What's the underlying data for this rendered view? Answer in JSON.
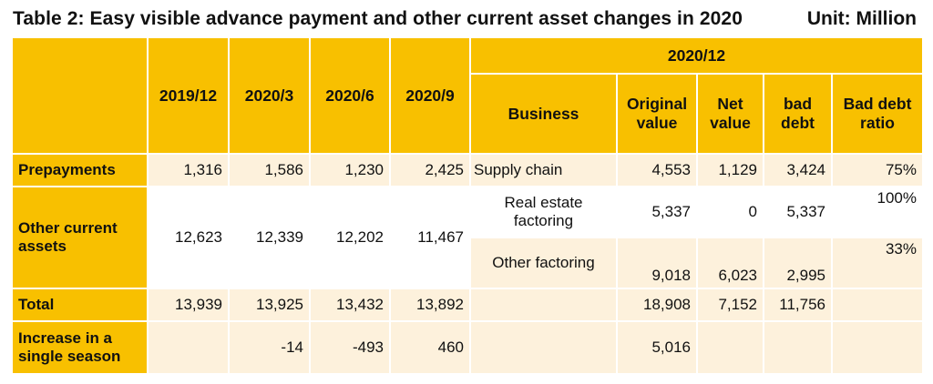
{
  "title": "Table 2: Easy visible advance payment and other current asset changes in 2020",
  "unit": "Unit: Million",
  "headers": {
    "p1": "2019/12",
    "p2": "2020/3",
    "p3": "2020/6",
    "p4": "2020/9",
    "group": "2020/12",
    "business": "Business",
    "original_value": "Original value",
    "net_value": "Net value",
    "bad_debt": "bad debt",
    "bad_debt_ratio": "Bad debt ratio"
  },
  "rows": {
    "prepayments": {
      "label": "Prepayments",
      "p1": "1,316",
      "p2": "1,586",
      "p3": "1,230",
      "p4": "2,425",
      "business": "Supply chain",
      "original": "4,553",
      "net": "1,129",
      "bad": "3,424",
      "ratio": "75%"
    },
    "other_current_assets": {
      "label": "Other current assets",
      "p1": "12,623",
      "p2": "12,339",
      "p3": "12,202",
      "p4": "11,467",
      "sub": [
        {
          "business": "Real estate factoring",
          "original": "5,337",
          "net": "0",
          "bad": "5,337",
          "ratio": "100%"
        },
        {
          "business": "Other factoring",
          "original": "9,018",
          "net": "6,023",
          "bad": "2,995",
          "ratio": "33%"
        }
      ]
    },
    "total": {
      "label": "Total",
      "p1": "13,939",
      "p2": "13,925",
      "p3": "13,432",
      "p4": "13,892",
      "original": "18,908",
      "net": "7,152",
      "bad": "11,756"
    },
    "increase": {
      "label": "Increase in a single season",
      "p2": "-14",
      "p3": "-493",
      "p4": "460",
      "original": "5,016"
    }
  }
}
